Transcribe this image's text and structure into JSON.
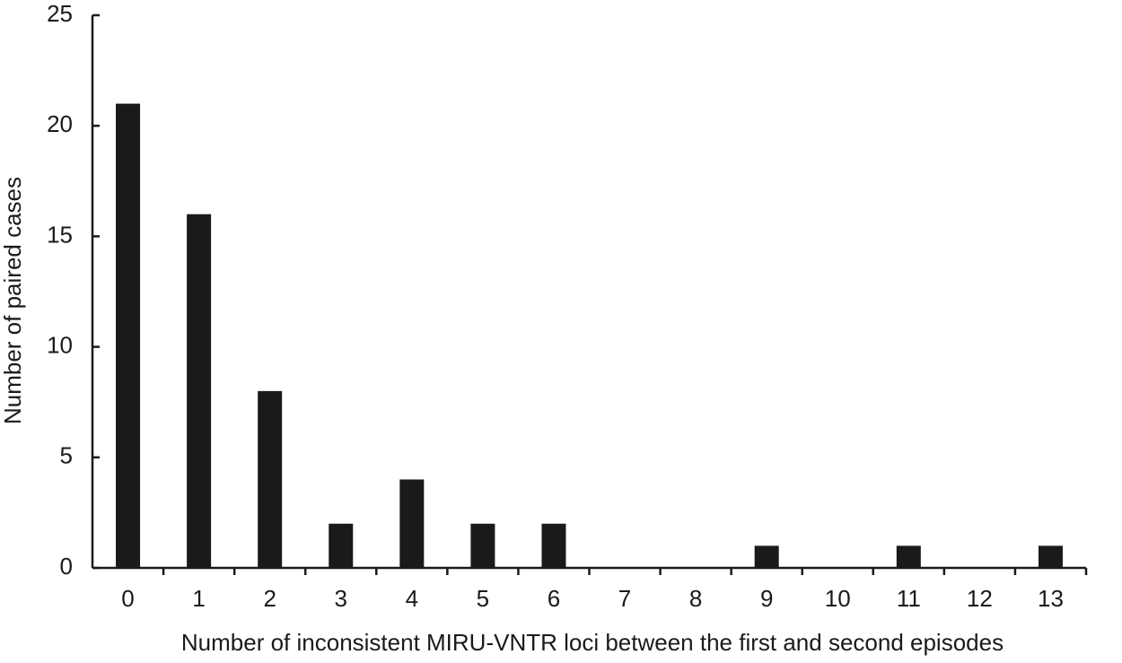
{
  "chart_data": {
    "type": "bar",
    "x_label": "Number of inconsistent MIRU-VNTR loci between the first and second episodes",
    "y_label": "Number of paired cases",
    "categories": [
      "0",
      "1",
      "2",
      "3",
      "4",
      "5",
      "6",
      "7",
      "8",
      "9",
      "10",
      "11",
      "12",
      "13"
    ],
    "values": [
      21,
      16,
      8,
      2,
      4,
      2,
      2,
      0,
      0,
      1,
      0,
      1,
      0,
      1
    ],
    "color": "#1a1a1a",
    "ylim": [
      0,
      25
    ],
    "yticks": [
      0,
      5,
      10,
      15,
      20,
      25
    ],
    "grid": false
  }
}
